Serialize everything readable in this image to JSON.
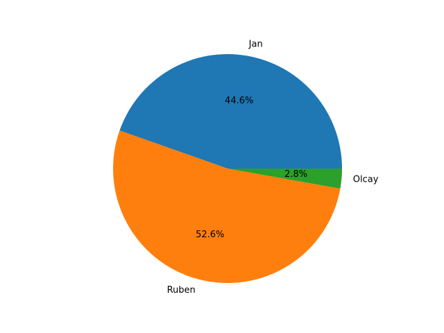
{
  "chart_data": {
    "type": "pie",
    "title": "",
    "start_angle_deg": 0,
    "counterclock": true,
    "slices": [
      {
        "label": "Jan",
        "value": 44.6,
        "pct_label": "44.6%",
        "color": "#1f77b4"
      },
      {
        "label": "Ruben",
        "value": 52.6,
        "pct_label": "52.6%",
        "color": "#ff7f0e"
      },
      {
        "label": "Olcay",
        "value": 2.8,
        "pct_label": "2.8%",
        "color": "#2ca02c"
      }
    ]
  }
}
